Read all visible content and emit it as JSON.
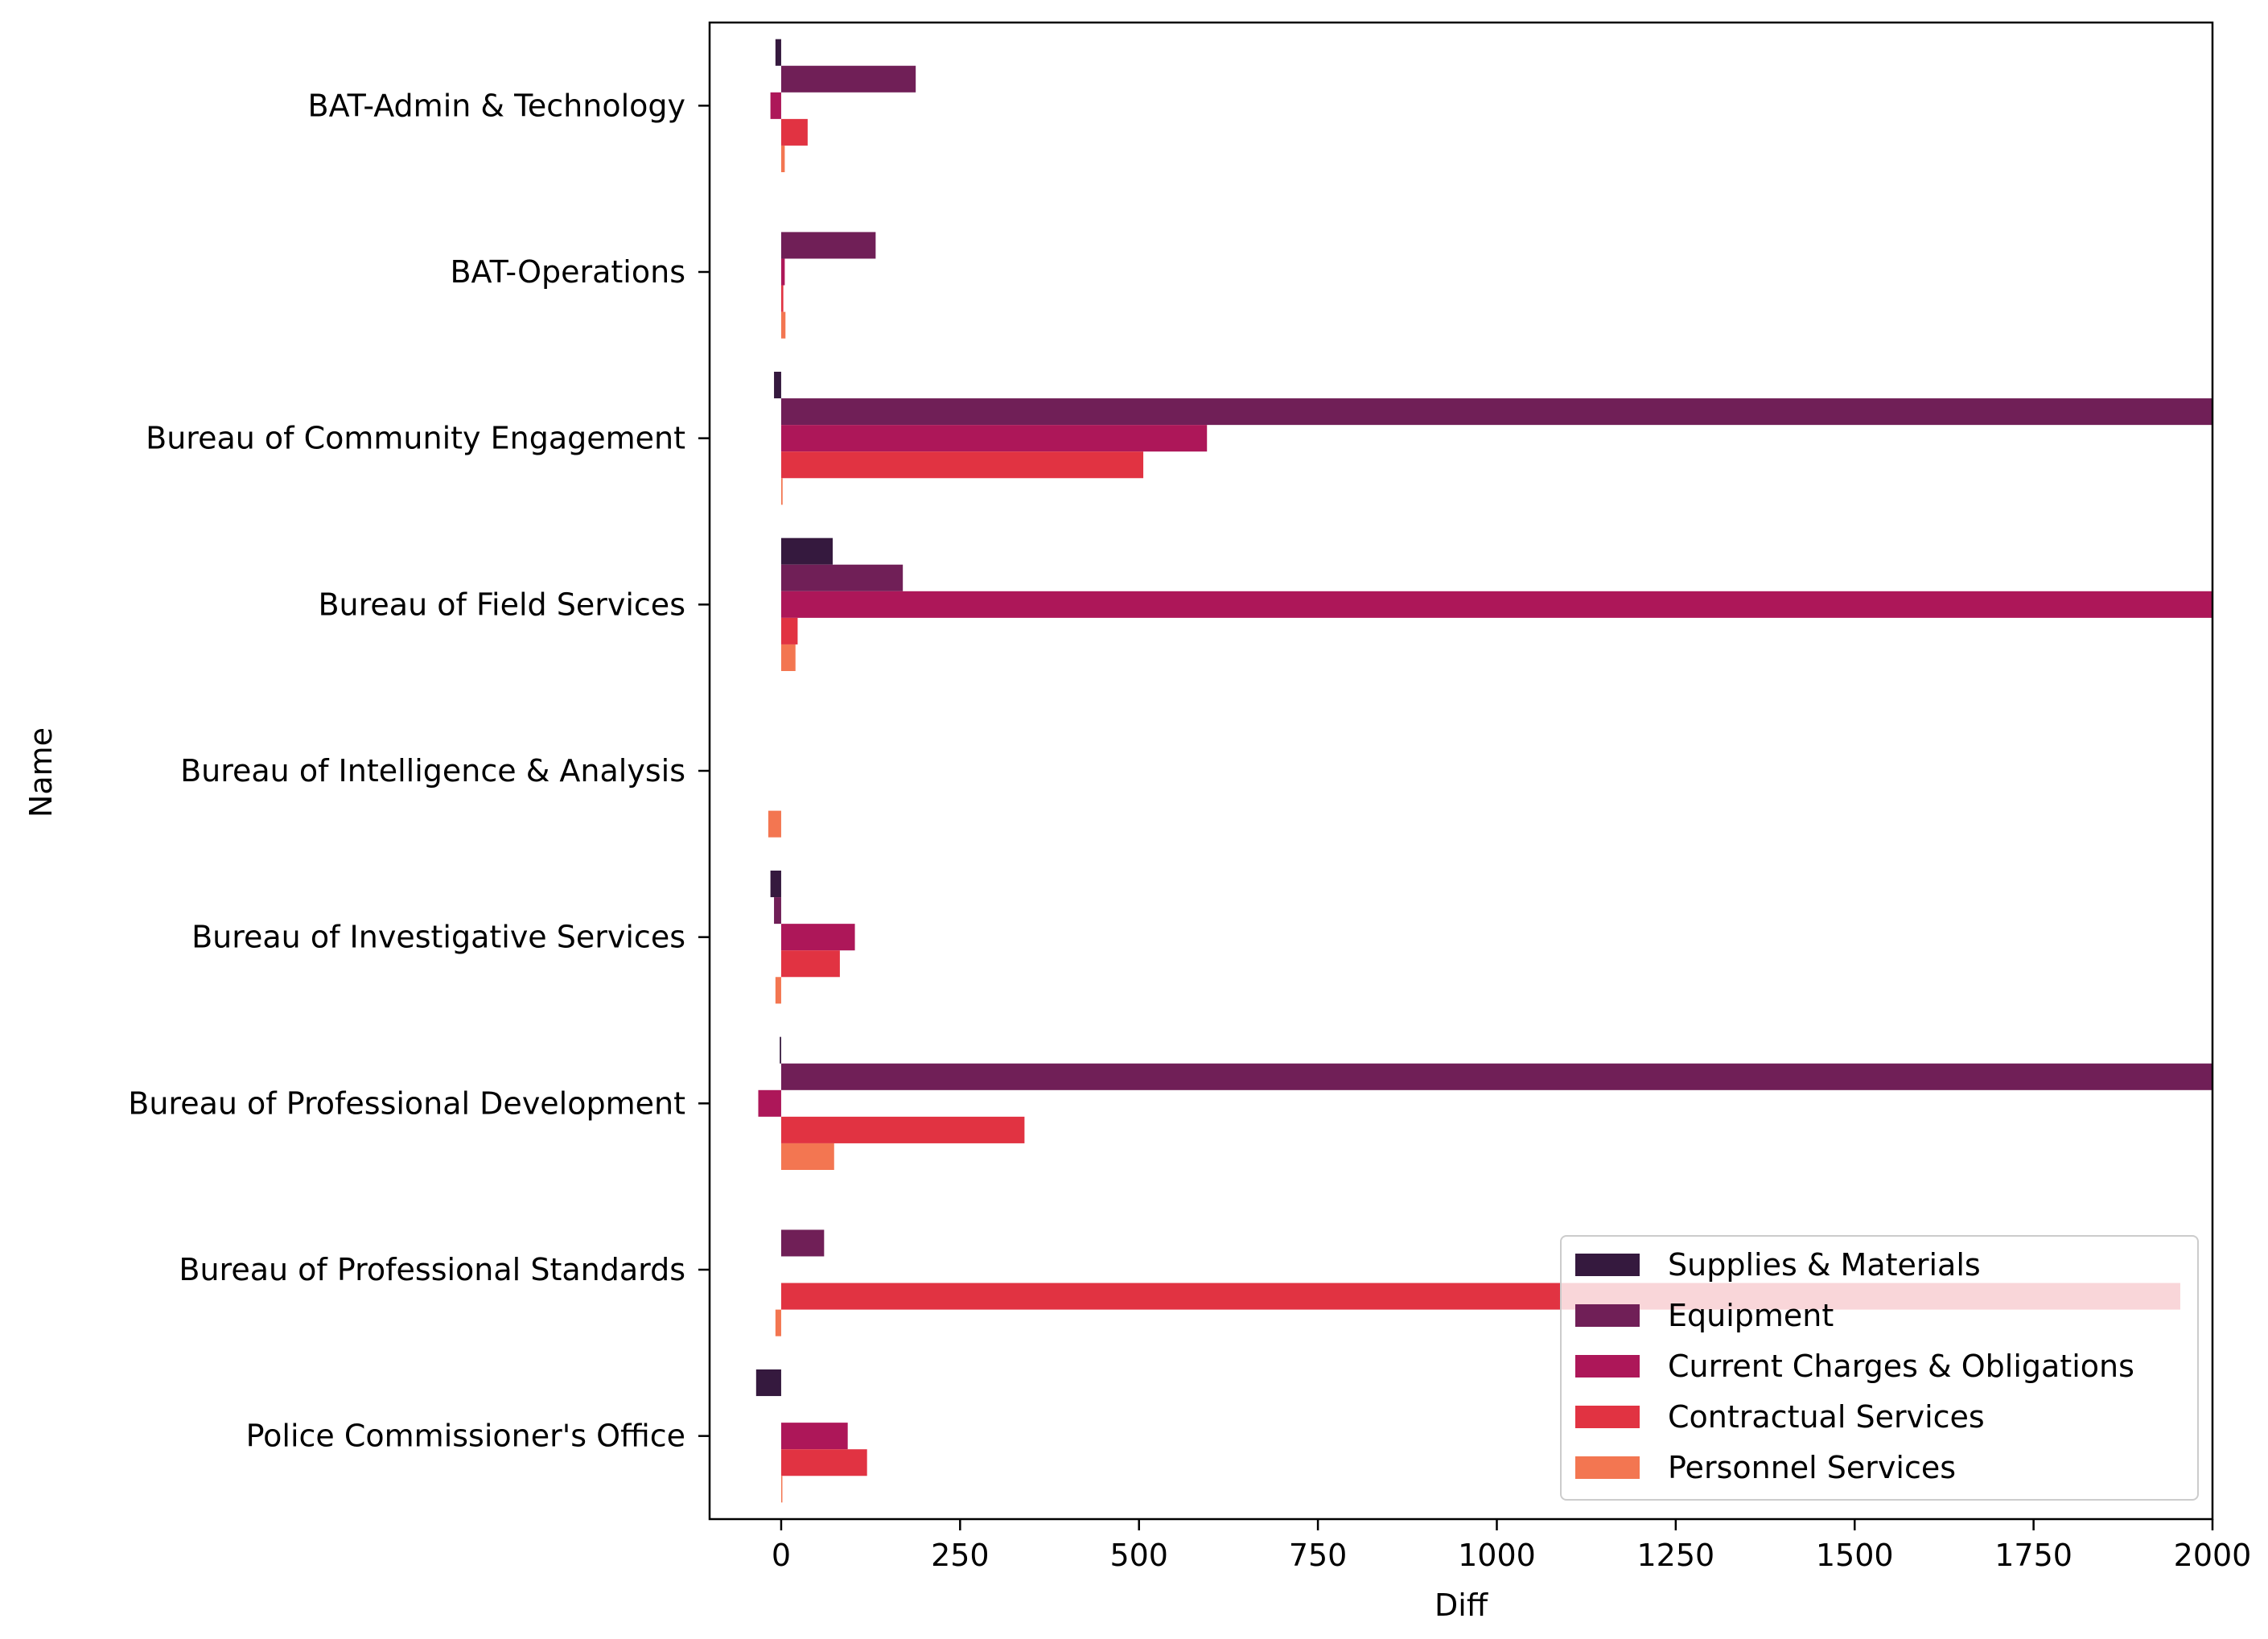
{
  "chart_data": {
    "type": "bar",
    "orientation": "horizontal",
    "title": "",
    "xlabel": "Diff",
    "ylabel": "Name",
    "xlim": [
      -100,
      2000
    ],
    "x_ticks": [
      0,
      250,
      500,
      750,
      1000,
      1250,
      1500,
      1750,
      2000
    ],
    "grid": false,
    "legend_position": "lower-right",
    "categories": [
      "BAT-Admin & Technology",
      "BAT-Operations",
      "Bureau of Community Engagement",
      "Bureau of Field Services",
      "Bureau of Intelligence & Analysis",
      "Bureau of Investigative Services",
      "Bureau of Professional Development",
      "Bureau of Professional Standards",
      "Police Commissioner's Office"
    ],
    "series": [
      {
        "name": "Supplies & Materials",
        "color": "#35193e",
        "values": [
          -8,
          null,
          -10,
          72,
          null,
          -15,
          -2,
          null,
          -35
        ]
      },
      {
        "name": "Equipment",
        "color": "#701f57",
        "values": [
          188,
          132,
          2000,
          170,
          null,
          -10,
          2000,
          60,
          null
        ]
      },
      {
        "name": "Current Charges & Obligations",
        "color": "#ad1759",
        "values": [
          -15,
          5,
          595,
          2000,
          null,
          103,
          -32,
          null,
          93
        ]
      },
      {
        "name": "Contractual Services",
        "color": "#e13342",
        "values": [
          37,
          3,
          506,
          23,
          null,
          82,
          340,
          1955,
          120
        ]
      },
      {
        "name": "Personnel Services",
        "color": "#f37651",
        "values": [
          5,
          6,
          2,
          20,
          -18,
          -8,
          74,
          -8,
          1
        ]
      }
    ]
  }
}
